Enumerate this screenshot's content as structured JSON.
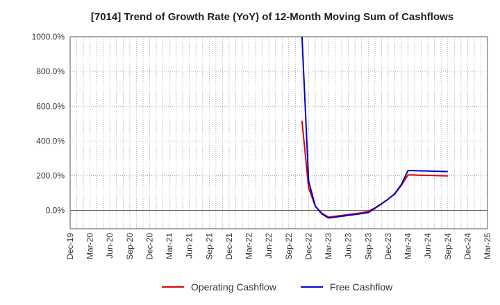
{
  "chart_data": {
    "type": "line",
    "title": "[7014]  Trend of Growth Rate (YoY) of 12-Month Moving Sum of Cashflows",
    "xlabel": "",
    "ylabel": "",
    "y_unit": "%",
    "ylim": [
      -105,
      1000
    ],
    "y_ticks": [
      0,
      200,
      400,
      600,
      800,
      1000
    ],
    "y_tick_labels": [
      "0.0%",
      "200.0%",
      "400.0%",
      "600.0%",
      "800.0%",
      "1000.0%"
    ],
    "x_range": [
      "2019-12",
      "2025-03"
    ],
    "x_ticks": [
      "2019-12",
      "2020-03",
      "2020-06",
      "2020-09",
      "2020-12",
      "2021-03",
      "2021-06",
      "2021-09",
      "2021-12",
      "2022-03",
      "2022-06",
      "2022-09",
      "2022-12",
      "2023-03",
      "2023-06",
      "2023-09",
      "2023-12",
      "2024-03",
      "2024-06",
      "2024-09",
      "2024-12",
      "2025-03"
    ],
    "x_tick_labels": [
      "Dec-19",
      "Mar-20",
      "Jun-20",
      "Sep-20",
      "Dec-20",
      "Mar-21",
      "Jun-21",
      "Sep-21",
      "Dec-21",
      "Mar-22",
      "Jun-22",
      "Sep-22",
      "Dec-22",
      "Mar-23",
      "Jun-23",
      "Sep-23",
      "Dec-23",
      "Mar-24",
      "Jun-24",
      "Sep-24",
      "Dec-24",
      "Mar-25"
    ],
    "grid": true,
    "legend_position": "bottom",
    "series": [
      {
        "name": "Operating Cashflow",
        "color": "#dd0000",
        "x": [
          "2022-11",
          "2022-12",
          "2023-01",
          "2023-02",
          "2023-03",
          "2023-04",
          "2023-05",
          "2023-06",
          "2023-07",
          "2023-08",
          "2023-09",
          "2023-10",
          "2023-11",
          "2023-12",
          "2024-01",
          "2024-02",
          "2024-03",
          "2024-04",
          "2024-05",
          "2024-06",
          "2024-07",
          "2024-08",
          "2024-09"
        ],
        "y": [
          515,
          130,
          25,
          -15,
          -38,
          -33,
          -28,
          -23,
          -18,
          -13,
          -5,
          15,
          40,
          65,
          95,
          145,
          205,
          204,
          203,
          202,
          201,
          200,
          199
        ]
      },
      {
        "name": "Free Cashflow",
        "color": "#0000cc",
        "x": [
          "2022-11",
          "2022-12",
          "2023-01",
          "2023-02",
          "2023-03",
          "2023-04",
          "2023-05",
          "2023-06",
          "2023-07",
          "2023-08",
          "2023-09",
          "2023-10",
          "2023-11",
          "2023-12",
          "2024-01",
          "2024-02",
          "2024-03",
          "2024-04",
          "2024-05",
          "2024-06",
          "2024-07",
          "2024-08",
          "2024-09"
        ],
        "y": [
          1000,
          170,
          25,
          -20,
          -43,
          -38,
          -33,
          -28,
          -23,
          -18,
          -12,
          12,
          38,
          65,
          97,
          150,
          230,
          229,
          228,
          227,
          226,
          225,
          224
        ]
      }
    ]
  }
}
